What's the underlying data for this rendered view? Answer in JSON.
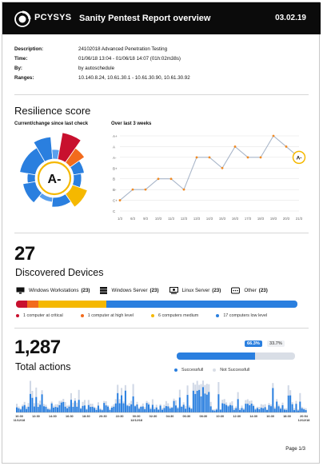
{
  "header": {
    "logo_text": "PCYSYS",
    "title": "Sanity Pentest Report overview",
    "date": "03.02.19"
  },
  "meta": [
    {
      "label": "Description:",
      "value": "24102018  Advanced Penetration Testing"
    },
    {
      "label": "Time:",
      "value": "01/06/18 13:04 - 01/06/18 14:07 (01h:02m38s)"
    },
    {
      "label": "By:",
      "value": "by autoschedule"
    },
    {
      "label": "Ranges:",
      "value": "10.140.8.24, 10.61.30.1 - 10.61.30.90, 10.61.30.92"
    }
  ],
  "resilience": {
    "title": "Resilience score",
    "current_label": "Current/change since last check",
    "history_label": "Over last 3 weeks",
    "grade": "A-",
    "chart_data": {
      "type": "line",
      "x": [
        "1/3",
        "6/3",
        "9/3",
        "10/3",
        "11/3",
        "12/3",
        "13/3",
        "14/3",
        "15/3",
        "16/3",
        "17/3",
        "18/3",
        "19/3",
        "20/3",
        "21/3"
      ],
      "y_categories": [
        "C",
        "C+",
        "B-",
        "B",
        "B+",
        "A-",
        "A",
        "A+"
      ],
      "values": [
        "C+",
        "B-",
        "B-",
        "B",
        "B",
        "B-",
        "A-",
        "A-",
        "B+",
        "A",
        "A-",
        "A-",
        "A+",
        "A",
        "A-"
      ],
      "current_label": "A-",
      "line_color": "#a9b6c9",
      "marker_color": "#f08a24"
    }
  },
  "devices": {
    "count": "27",
    "title": "Discovered Devices",
    "types": [
      {
        "label": "Windows Workstations",
        "count": "(23)",
        "icon": "monitor-icon"
      },
      {
        "label": "Windows Server",
        "count": "(23)",
        "icon": "server-icon"
      },
      {
        "label": "Linux Server",
        "count": "(23)",
        "icon": "linux-server-icon"
      },
      {
        "label": "Other",
        "count": "(23)",
        "icon": "other-device-icon"
      }
    ],
    "severity": [
      {
        "label": "1 computer at critical",
        "value": 1,
        "color": "#c8102e"
      },
      {
        "label": "1 computer at high level",
        "value": 1,
        "color": "#f26b1d"
      },
      {
        "label": "6 computers medium",
        "value": 6,
        "color": "#f5b800"
      },
      {
        "label": "17 computers low level",
        "value": 17,
        "color": "#2a7fdf"
      }
    ]
  },
  "actions": {
    "count": "1,287",
    "title": "Total actions",
    "success_pct_label": "66.3%",
    "fail_pct_label": "33.7%",
    "success_fraction": 0.663,
    "legend_success": "Successfull",
    "legend_fail": "Not Successfull",
    "chart_data": {
      "type": "bar",
      "x_ticks": [
        "10:30",
        "12:30",
        "14:30",
        "16:30",
        "18:30",
        "20:30",
        "22:30",
        "00:30",
        "02:30",
        "04:30",
        "06:30",
        "08:30",
        "10:30",
        "12:30",
        "14:30",
        "16:30",
        "18:30",
        "20:54"
      ],
      "date_labels": [
        "11/12/18",
        "12/12/18",
        "12/12/18"
      ],
      "note": "stacked bars: successful (blue) and not successful (light)"
    }
  },
  "footer": {
    "page": "Page 1/3"
  }
}
